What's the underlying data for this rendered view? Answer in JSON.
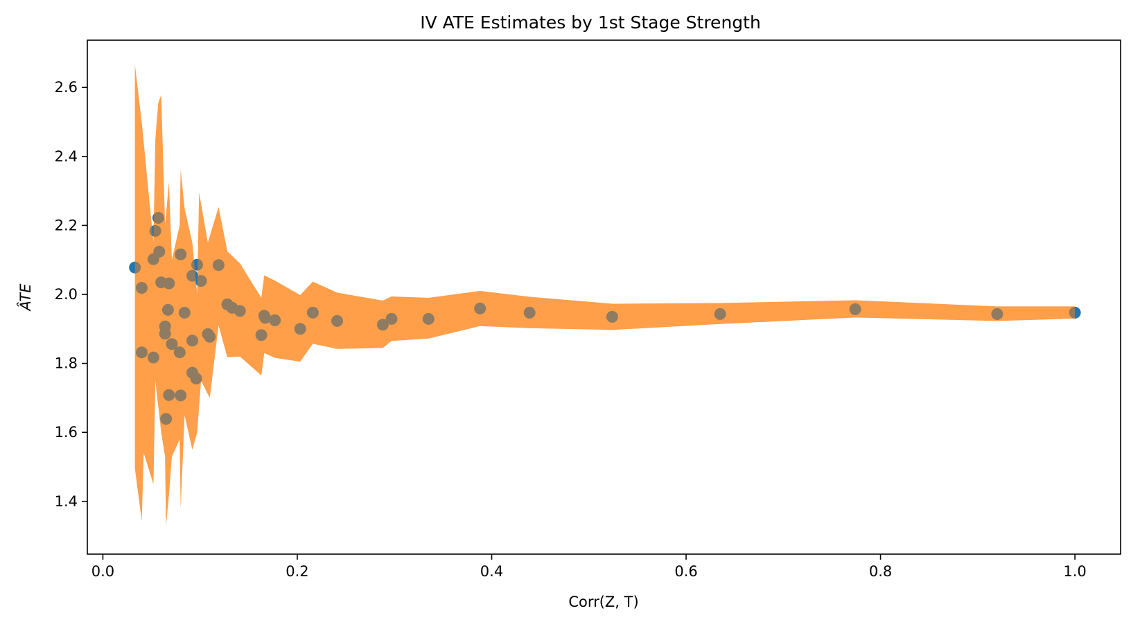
{
  "chart_data": {
    "type": "scatter",
    "title": "IV ATE Estimates by 1st Stage Strength",
    "xlabel": "Corr(Z, T)",
    "ylabel": "ÂTE",
    "xlim": [
      -0.016,
      1.047
    ],
    "ylim": [
      1.247,
      2.737
    ],
    "xticks": [
      0.0,
      0.2,
      0.4,
      0.6,
      0.8,
      1.0
    ],
    "xtick_labels": [
      "0.0",
      "0.2",
      "0.4",
      "0.6",
      "0.8",
      "1.0"
    ],
    "yticks": [
      1.4,
      1.6,
      1.8,
      2.0,
      2.2,
      2.4,
      2.6
    ],
    "ytick_labels": [
      "1.4",
      "1.6",
      "1.8",
      "2.0",
      "2.2",
      "2.4",
      "2.6"
    ],
    "grid": false,
    "colors": {
      "points": "#1f77b4",
      "band": "#ff7f0e",
      "band_alpha": 0.5
    },
    "points": [
      {
        "x": 0.033,
        "y": 2.078
      },
      {
        "x": 0.04,
        "y": 2.019
      },
      {
        "x": 0.04,
        "y": 1.832
      },
      {
        "x": 0.052,
        "y": 2.102
      },
      {
        "x": 0.052,
        "y": 1.817
      },
      {
        "x": 0.054,
        "y": 2.184
      },
      {
        "x": 0.057,
        "y": 2.222
      },
      {
        "x": 0.058,
        "y": 2.124
      },
      {
        "x": 0.06,
        "y": 2.035
      },
      {
        "x": 0.064,
        "y": 1.907
      },
      {
        "x": 0.064,
        "y": 1.886
      },
      {
        "x": 0.065,
        "y": 1.639
      },
      {
        "x": 0.067,
        "y": 1.955
      },
      {
        "x": 0.068,
        "y": 2.032
      },
      {
        "x": 0.068,
        "y": 1.708
      },
      {
        "x": 0.071,
        "y": 1.856
      },
      {
        "x": 0.079,
        "y": 1.832
      },
      {
        "x": 0.08,
        "y": 2.116
      },
      {
        "x": 0.08,
        "y": 1.707
      },
      {
        "x": 0.084,
        "y": 1.947
      },
      {
        "x": 0.092,
        "y": 2.054
      },
      {
        "x": 0.092,
        "y": 1.866
      },
      {
        "x": 0.092,
        "y": 1.773
      },
      {
        "x": 0.096,
        "y": 1.756
      },
      {
        "x": 0.097,
        "y": 2.086
      },
      {
        "x": 0.101,
        "y": 2.039
      },
      {
        "x": 0.108,
        "y": 1.885
      },
      {
        "x": 0.11,
        "y": 1.877
      },
      {
        "x": 0.119,
        "y": 2.085
      },
      {
        "x": 0.128,
        "y": 1.971
      },
      {
        "x": 0.133,
        "y": 1.961
      },
      {
        "x": 0.141,
        "y": 1.952
      },
      {
        "x": 0.163,
        "y": 1.882
      },
      {
        "x": 0.166,
        "y": 1.938
      },
      {
        "x": 0.167,
        "y": 1.932
      },
      {
        "x": 0.177,
        "y": 1.925
      },
      {
        "x": 0.203,
        "y": 1.9
      },
      {
        "x": 0.216,
        "y": 1.947
      },
      {
        "x": 0.241,
        "y": 1.923
      },
      {
        "x": 0.288,
        "y": 1.912
      },
      {
        "x": 0.297,
        "y": 1.929
      },
      {
        "x": 0.335,
        "y": 1.929
      },
      {
        "x": 0.388,
        "y": 1.959
      },
      {
        "x": 0.439,
        "y": 1.947
      },
      {
        "x": 0.524,
        "y": 1.935
      },
      {
        "x": 0.635,
        "y": 1.943
      },
      {
        "x": 0.774,
        "y": 1.957
      },
      {
        "x": 0.92,
        "y": 1.943
      },
      {
        "x": 1.0,
        "y": 1.947
      }
    ],
    "band_upper": [
      {
        "x": 0.033,
        "y": 2.665
      },
      {
        "x": 0.04,
        "y": 2.5
      },
      {
        "x": 0.052,
        "y": 2.15
      },
      {
        "x": 0.054,
        "y": 2.45
      },
      {
        "x": 0.057,
        "y": 2.555
      },
      {
        "x": 0.06,
        "y": 2.578
      },
      {
        "x": 0.064,
        "y": 2.2
      },
      {
        "x": 0.068,
        "y": 2.325
      },
      {
        "x": 0.071,
        "y": 2.1
      },
      {
        "x": 0.079,
        "y": 2.2
      },
      {
        "x": 0.08,
        "y": 2.362
      },
      {
        "x": 0.084,
        "y": 2.25
      },
      {
        "x": 0.092,
        "y": 2.15
      },
      {
        "x": 0.097,
        "y": 2.0
      },
      {
        "x": 0.099,
        "y": 2.295
      },
      {
        "x": 0.108,
        "y": 2.15
      },
      {
        "x": 0.119,
        "y": 2.253
      },
      {
        "x": 0.128,
        "y": 2.125
      },
      {
        "x": 0.141,
        "y": 2.09
      },
      {
        "x": 0.163,
        "y": 1.99
      },
      {
        "x": 0.166,
        "y": 2.055
      },
      {
        "x": 0.177,
        "y": 2.04
      },
      {
        "x": 0.203,
        "y": 1.998
      },
      {
        "x": 0.216,
        "y": 2.037
      },
      {
        "x": 0.241,
        "y": 2.005
      },
      {
        "x": 0.288,
        "y": 1.982
      },
      {
        "x": 0.297,
        "y": 1.994
      },
      {
        "x": 0.335,
        "y": 1.99
      },
      {
        "x": 0.388,
        "y": 2.01
      },
      {
        "x": 0.439,
        "y": 1.993
      },
      {
        "x": 0.524,
        "y": 1.973
      },
      {
        "x": 0.635,
        "y": 1.975
      },
      {
        "x": 0.774,
        "y": 1.983
      },
      {
        "x": 0.92,
        "y": 1.965
      },
      {
        "x": 1.0,
        "y": 1.965
      }
    ],
    "band_lower": [
      {
        "x": 0.033,
        "y": 1.495
      },
      {
        "x": 0.04,
        "y": 1.345
      },
      {
        "x": 0.042,
        "y": 1.54
      },
      {
        "x": 0.052,
        "y": 1.45
      },
      {
        "x": 0.054,
        "y": 1.75
      },
      {
        "x": 0.06,
        "y": 1.6
      },
      {
        "x": 0.064,
        "y": 1.53
      },
      {
        "x": 0.065,
        "y": 1.33
      },
      {
        "x": 0.068,
        "y": 1.42
      },
      {
        "x": 0.071,
        "y": 1.53
      },
      {
        "x": 0.079,
        "y": 1.58
      },
      {
        "x": 0.08,
        "y": 1.38
      },
      {
        "x": 0.084,
        "y": 1.65
      },
      {
        "x": 0.092,
        "y": 1.55
      },
      {
        "x": 0.097,
        "y": 1.6
      },
      {
        "x": 0.101,
        "y": 1.75
      },
      {
        "x": 0.11,
        "y": 1.7
      },
      {
        "x": 0.119,
        "y": 1.91
      },
      {
        "x": 0.128,
        "y": 1.818
      },
      {
        "x": 0.141,
        "y": 1.82
      },
      {
        "x": 0.163,
        "y": 1.765
      },
      {
        "x": 0.166,
        "y": 1.83
      },
      {
        "x": 0.177,
        "y": 1.816
      },
      {
        "x": 0.203,
        "y": 1.805
      },
      {
        "x": 0.216,
        "y": 1.857
      },
      {
        "x": 0.241,
        "y": 1.842
      },
      {
        "x": 0.288,
        "y": 1.845
      },
      {
        "x": 0.297,
        "y": 1.865
      },
      {
        "x": 0.335,
        "y": 1.872
      },
      {
        "x": 0.388,
        "y": 1.908
      },
      {
        "x": 0.439,
        "y": 1.902
      },
      {
        "x": 0.524,
        "y": 1.897
      },
      {
        "x": 0.635,
        "y": 1.914
      },
      {
        "x": 0.774,
        "y": 1.933
      },
      {
        "x": 0.92,
        "y": 1.923
      },
      {
        "x": 1.0,
        "y": 1.93
      }
    ]
  }
}
